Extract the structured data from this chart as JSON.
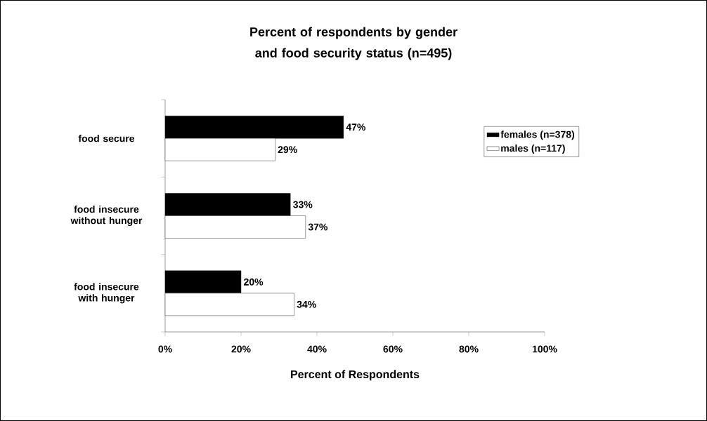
{
  "chart_data": {
    "type": "bar",
    "orientation": "horizontal",
    "title": "Percent of respondents by gender and food security status (n=495)",
    "xlabel": "Percent of Respondents",
    "categories": [
      "food secure",
      "food insecure without hunger",
      "food insecure with hunger"
    ],
    "series": [
      {
        "name": "females (n=378)",
        "color": "#000000",
        "values": [
          47,
          33,
          20
        ],
        "value_labels": [
          "47%",
          "33%",
          "20%"
        ]
      },
      {
        "name": "males (n=117)",
        "color": "#ffffff",
        "values": [
          29,
          37,
          34
        ],
        "value_labels": [
          "29%",
          "37%",
          "34%"
        ]
      }
    ],
    "xlim": [
      0,
      100
    ],
    "xticks": [
      {
        "value": 0,
        "label": "0%"
      },
      {
        "value": 20,
        "label": "20%"
      },
      {
        "value": 40,
        "label": "40%"
      },
      {
        "value": 60,
        "label": "60%"
      },
      {
        "value": 80,
        "label": "80%"
      },
      {
        "value": 100,
        "label": "100%"
      }
    ],
    "legend": "top right"
  }
}
